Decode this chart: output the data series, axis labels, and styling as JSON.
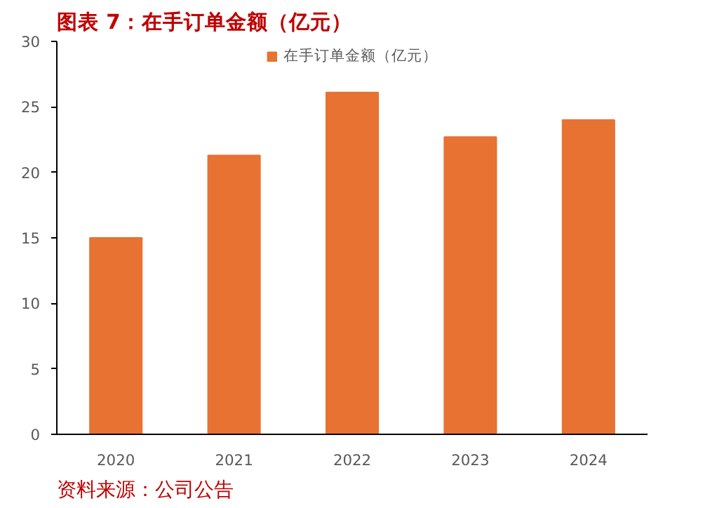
{
  "chart_data": {
    "type": "bar",
    "title": "图表 7：在手订单金额（亿元）",
    "categories": [
      "2020",
      "2021",
      "2022",
      "2023",
      "2024"
    ],
    "series": [
      {
        "name": "在手订单金额（亿元）",
        "color": "#e87231",
        "values": [
          15,
          21.3,
          26.1,
          22.7,
          24.0
        ]
      }
    ],
    "ylim": [
      0,
      30
    ],
    "yticks": [
      0,
      5,
      10,
      15,
      20,
      25,
      30
    ],
    "grid": false,
    "legend": "top",
    "annotations": [
      "资料来源：公司公告"
    ]
  }
}
